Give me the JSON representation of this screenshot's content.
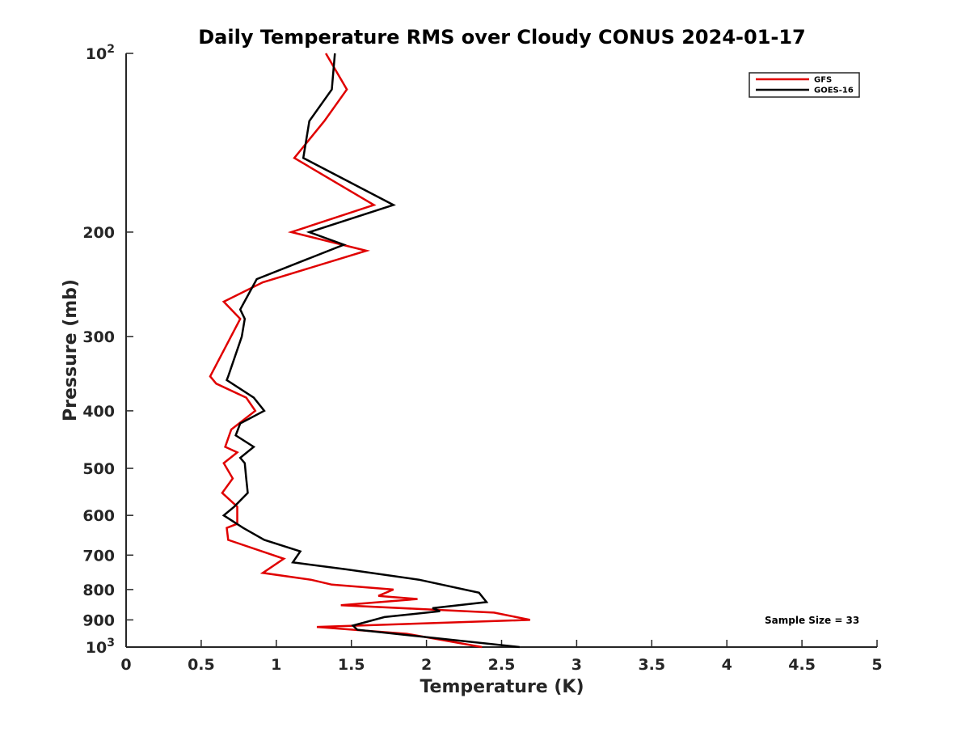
{
  "chart_data": {
    "type": "line",
    "title": "Daily Temperature RMS over Cloudy CONUS 2024-01-17",
    "xlabel": "Temperature (K)",
    "ylabel": "Pressure (mb)",
    "xlim": [
      0,
      5
    ],
    "ylim": [
      1000,
      100
    ],
    "yscale": "log",
    "grid": false,
    "legend_position": "top-right",
    "x_ticks": [
      {
        "value": 0,
        "label": "0"
      },
      {
        "value": 0.5,
        "label": "0.5"
      },
      {
        "value": 1,
        "label": "1"
      },
      {
        "value": 1.5,
        "label": "1.5"
      },
      {
        "value": 2,
        "label": "2"
      },
      {
        "value": 2.5,
        "label": "2.5"
      },
      {
        "value": 3,
        "label": "3"
      },
      {
        "value": 3.5,
        "label": "3.5"
      },
      {
        "value": 4,
        "label": "4"
      },
      {
        "value": 4.5,
        "label": "4.5"
      },
      {
        "value": 5,
        "label": "5"
      }
    ],
    "y_ticks": [
      {
        "value": 100,
        "base": "10",
        "exp": "2"
      },
      {
        "value": 200,
        "label": "200"
      },
      {
        "value": 300,
        "label": "300"
      },
      {
        "value": 400,
        "label": "400"
      },
      {
        "value": 500,
        "label": "500"
      },
      {
        "value": 600,
        "label": "600"
      },
      {
        "value": 700,
        "label": "700"
      },
      {
        "value": 800,
        "label": "800"
      },
      {
        "value": 900,
        "label": "900"
      },
      {
        "value": 1000,
        "base": "10",
        "exp": "3"
      }
    ],
    "annotation": "Sample Size = 33",
    "series": [
      {
        "name": "GFS",
        "color": "#e00000",
        "points": [
          [
            1.33,
            100
          ],
          [
            1.47,
            115
          ],
          [
            1.32,
            130
          ],
          [
            1.12,
            150
          ],
          [
            1.65,
            180
          ],
          [
            1.1,
            200
          ],
          [
            1.6,
            215
          ],
          [
            0.91,
            243
          ],
          [
            0.65,
            262
          ],
          [
            0.76,
            280
          ],
          [
            0.56,
            350
          ],
          [
            0.6,
            360
          ],
          [
            0.8,
            380
          ],
          [
            0.86,
            400
          ],
          [
            0.7,
            430
          ],
          [
            0.66,
            460
          ],
          [
            0.74,
            470
          ],
          [
            0.65,
            490
          ],
          [
            0.71,
            520
          ],
          [
            0.64,
            550
          ],
          [
            0.74,
            580
          ],
          [
            0.74,
            620
          ],
          [
            0.67,
            630
          ],
          [
            0.68,
            660
          ],
          [
            1.05,
            710
          ],
          [
            0.91,
            750
          ],
          [
            1.23,
            770
          ],
          [
            1.37,
            785
          ],
          [
            1.78,
            800
          ],
          [
            1.68,
            820
          ],
          [
            1.94,
            830
          ],
          [
            1.43,
            850
          ],
          [
            2.45,
            875
          ],
          [
            2.69,
            900
          ],
          [
            1.27,
            925
          ],
          [
            1.87,
            950
          ],
          [
            2.37,
            1000
          ]
        ]
      },
      {
        "name": "GOES-16",
        "color": "#000000",
        "points": [
          [
            1.39,
            100
          ],
          [
            1.37,
            115
          ],
          [
            1.22,
            130
          ],
          [
            1.18,
            150
          ],
          [
            1.78,
            180
          ],
          [
            1.22,
            200
          ],
          [
            1.45,
            210
          ],
          [
            0.87,
            240
          ],
          [
            0.76,
            270
          ],
          [
            0.79,
            280
          ],
          [
            0.77,
            300
          ],
          [
            0.68,
            350
          ],
          [
            0.67,
            355
          ],
          [
            0.85,
            380
          ],
          [
            0.92,
            400
          ],
          [
            0.76,
            420
          ],
          [
            0.73,
            440
          ],
          [
            0.85,
            460
          ],
          [
            0.76,
            480
          ],
          [
            0.79,
            490
          ],
          [
            0.8,
            520
          ],
          [
            0.81,
            550
          ],
          [
            0.72,
            580
          ],
          [
            0.65,
            600
          ],
          [
            0.78,
            630
          ],
          [
            0.92,
            660
          ],
          [
            1.16,
            690
          ],
          [
            1.11,
            720
          ],
          [
            1.47,
            740
          ],
          [
            1.95,
            770
          ],
          [
            2.35,
            810
          ],
          [
            2.4,
            840
          ],
          [
            2.04,
            860
          ],
          [
            2.09,
            870
          ],
          [
            1.72,
            890
          ],
          [
            1.51,
            920
          ],
          [
            1.54,
            935
          ],
          [
            2.62,
            1000
          ]
        ]
      }
    ]
  }
}
